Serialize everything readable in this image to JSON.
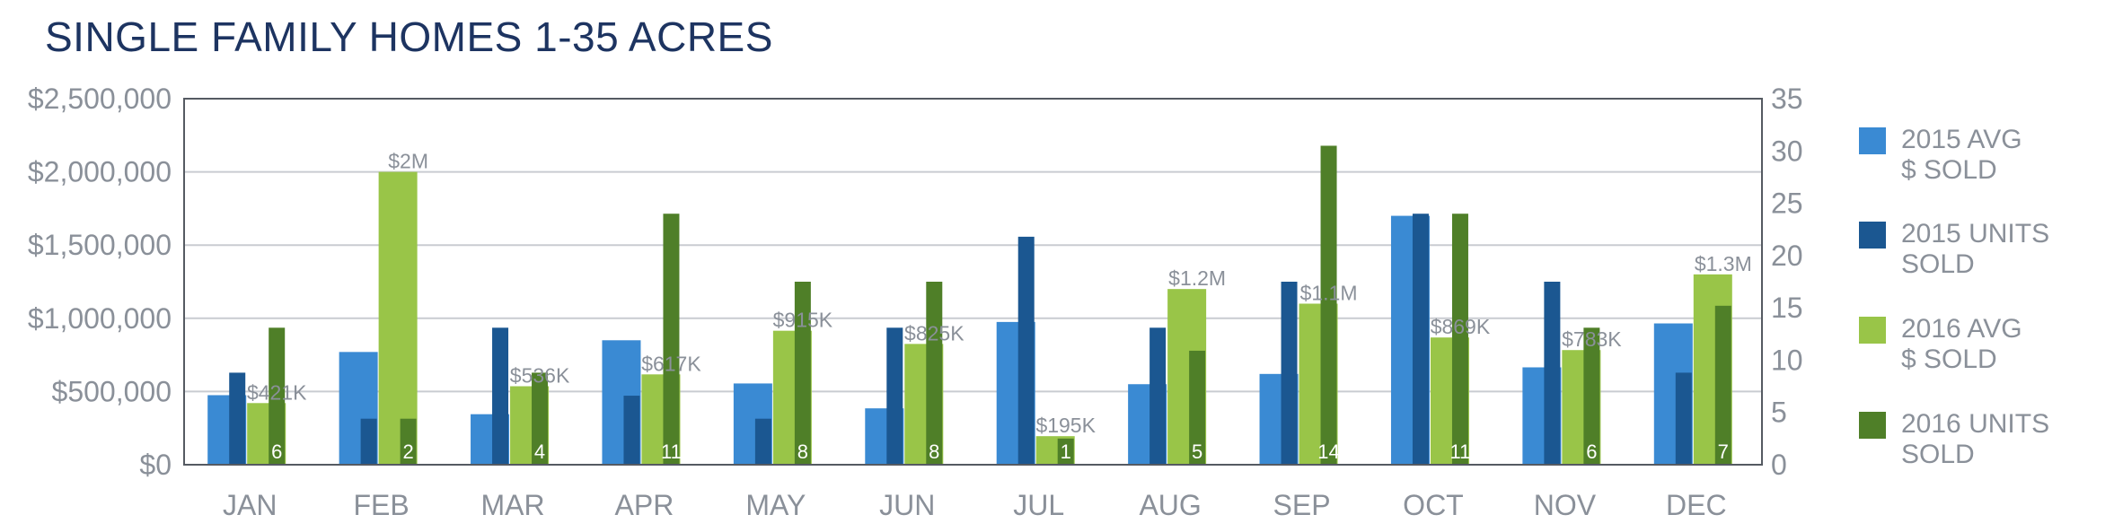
{
  "chart_data": {
    "type": "bar",
    "title": "SINGLE FAMILY HOMES 1-35 ACRES",
    "categories": [
      "JAN",
      "FEB",
      "MAR",
      "APR",
      "MAY",
      "JUN",
      "JUL",
      "AUG",
      "SEP",
      "OCT",
      "NOV",
      "DEC"
    ],
    "y_left": {
      "min": 0,
      "max": 2500000,
      "ticks": [
        "$0",
        "$500,000",
        "$1,000,000",
        "$1,500,000",
        "$2,000,000",
        "$2,500,000"
      ]
    },
    "y_right": {
      "min": 0,
      "max": 35,
      "ticks": [
        "0",
        "5",
        "10",
        "15",
        "20",
        "25",
        "30",
        "35"
      ]
    },
    "grid": true,
    "legend_position": "right",
    "series": [
      {
        "name": "2015 AVG $ SOLD",
        "axis": "left",
        "color": "#3a8ad3",
        "values": [
          475000,
          770000,
          345000,
          850000,
          555000,
          385000,
          975000,
          550000,
          620000,
          1700000,
          665000,
          965000
        ]
      },
      {
        "name": "2015 UNITS SOLD",
        "axis": "right",
        "color": "#1b5791",
        "values": [
          8.8,
          4.4,
          13.1,
          6.6,
          4.4,
          13.1,
          21.8,
          13.1,
          17.5,
          24.0,
          17.5,
          8.8
        ]
      },
      {
        "name": "2016 AVG $ SOLD",
        "axis": "left",
        "color": "#99c548",
        "values": [
          421000,
          2000000,
          536000,
          617000,
          915000,
          825000,
          195000,
          1200000,
          1100000,
          869000,
          783000,
          1300000
        ],
        "labels": [
          "$421K",
          "$2M",
          "$536K",
          "$617K",
          "$915K",
          "$825K",
          "$195K",
          "$1.2M",
          "$1.1M",
          "$869K",
          "$783K",
          "$1.3M"
        ]
      },
      {
        "name": "2016 UNITS SOLD",
        "axis": "right",
        "color": "#4f7f28",
        "values": [
          13.1,
          4.4,
          8.8,
          24.0,
          17.5,
          17.5,
          2.5,
          10.9,
          30.5,
          24.0,
          13.1,
          15.2
        ],
        "labels": [
          "6",
          "2",
          "4",
          "11",
          "8",
          "8",
          "1",
          "5",
          "14",
          "11",
          "6",
          "7"
        ]
      }
    ],
    "legend": [
      {
        "line1": "2015 AVG",
        "line2": "$ SOLD",
        "color": "#3a8ad3"
      },
      {
        "line1": "2015 UNITS",
        "line2": "SOLD",
        "color": "#1b5791"
      },
      {
        "line1": "2016 AVG",
        "line2": "$ SOLD",
        "color": "#99c548"
      },
      {
        "line1": "2016 UNITS",
        "line2": "SOLD",
        "color": "#4f7f28"
      }
    ]
  }
}
